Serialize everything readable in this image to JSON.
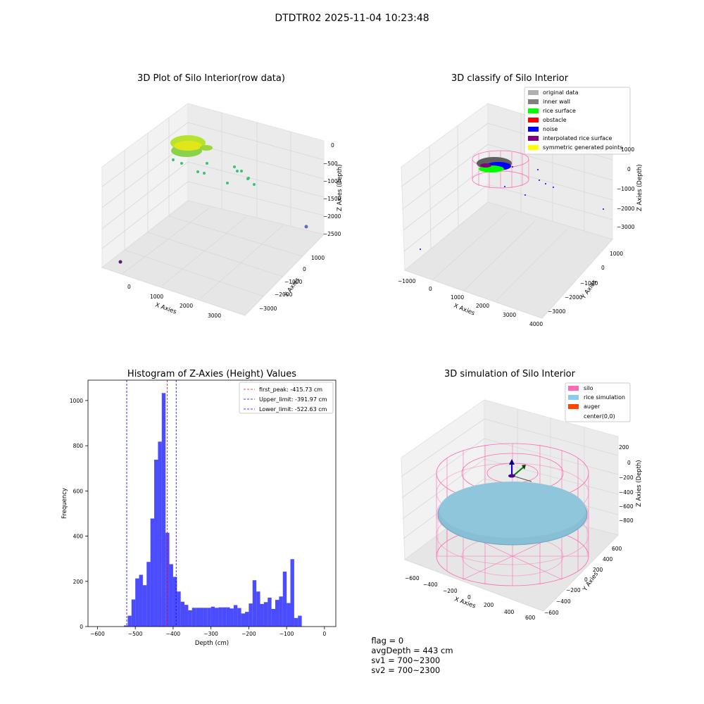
{
  "window": {
    "title": "DTDTR02 2025-11-04 10:23:48"
  },
  "panels": {
    "raw": {
      "title": "3D Plot of Silo Interior(row data)",
      "xlabel": "X Axies",
      "ylabel": "Y Axies",
      "zlabel": "Z Axies (Depth)",
      "xticks": [
        "0",
        "1000",
        "2000",
        "3000"
      ],
      "yticks": [
        "1000",
        "0",
        "−1000",
        "−2000",
        "−3000"
      ],
      "zticks": [
        "0",
        "−500",
        "−1000",
        "−1500",
        "−2000",
        "−2500"
      ]
    },
    "classify": {
      "title": "3D classify of Silo Interior",
      "xlabel": "X Axies",
      "ylabel": "Y Axies",
      "zlabel": "Z Axies (Depth)",
      "xticks": [
        "−1000",
        "0",
        "1000",
        "2000",
        "3000",
        "4000"
      ],
      "yticks": [
        "1000",
        "0",
        "−1000",
        "−2000",
        "−3000"
      ],
      "zticks": [
        "1000",
        "0",
        "−1000",
        "−2000",
        "−3000"
      ],
      "legend": [
        {
          "label": "original data",
          "color": "#b0b0b0"
        },
        {
          "label": "inner wall",
          "color": "#808080"
        },
        {
          "label": "rice surface",
          "color": "#00ff00"
        },
        {
          "label": "obstacle",
          "color": "#ff0000"
        },
        {
          "label": "noise",
          "color": "#0000ff"
        },
        {
          "label": "interpolated rice surface",
          "color": "#800080"
        },
        {
          "label": "symmetric generated points",
          "color": "#ffff00"
        }
      ]
    },
    "simulation": {
      "title": "3D simulation of Silo Interior",
      "xlabel": "X Axies",
      "ylabel": "Y Axies",
      "zlabel": "Z Axies (Depth)",
      "xticks": [
        "−600",
        "−400",
        "−200",
        "0",
        "200",
        "400",
        "600"
      ],
      "yticks": [
        "600",
        "400",
        "200",
        "0",
        "−200",
        "−400",
        "−600"
      ],
      "zticks": [
        "200",
        "0",
        "−200",
        "−400",
        "−600",
        "−800"
      ],
      "legend": [
        {
          "label": "silo",
          "color": "#ff69b4"
        },
        {
          "label": "rice simulation",
          "color": "#87ceeb"
        },
        {
          "label": "auger",
          "color": "#ff4500"
        },
        {
          "label": "center(0,0)",
          "color": ""
        }
      ]
    }
  },
  "status": {
    "flag": "flag = 0",
    "avg_depth": "avgDepth = 443 cm",
    "sv1": "sv1 = 700~2300",
    "sv2": "sv2 = 700~2300"
  },
  "chart_data": [
    {
      "type": "histogram",
      "title": "Histogram of Z-Axies (Height) Values",
      "xlabel": "Depth (cm)",
      "ylabel": "Frequency",
      "xlim": [
        -625,
        30
      ],
      "ylim": [
        0,
        1090
      ],
      "xticks": [
        -600,
        -500,
        -400,
        -300,
        -200,
        -100,
        0
      ],
      "yticks": [
        0,
        200,
        400,
        600,
        800,
        1000
      ],
      "bar_color": "#0000ff",
      "bins": [
        [
          -530,
          -520,
          5
        ],
        [
          -520,
          -510,
          48
        ],
        [
          -510,
          -500,
          120
        ],
        [
          -500,
          -490,
          213
        ],
        [
          -490,
          -480,
          229
        ],
        [
          -480,
          -470,
          183
        ],
        [
          -470,
          -460,
          286
        ],
        [
          -460,
          -450,
          478
        ],
        [
          -450,
          -440,
          738
        ],
        [
          -440,
          -430,
          818
        ],
        [
          -430,
          -420,
          1033
        ],
        [
          -420,
          -410,
          415
        ],
        [
          -410,
          -400,
          276
        ],
        [
          -400,
          -390,
          220
        ],
        [
          -390,
          -380,
          155
        ],
        [
          -380,
          -370,
          110
        ],
        [
          -370,
          -360,
          96
        ],
        [
          -360,
          -350,
          72
        ],
        [
          -350,
          -340,
          83
        ],
        [
          -340,
          -330,
          83
        ],
        [
          -330,
          -320,
          83
        ],
        [
          -320,
          -310,
          83
        ],
        [
          -310,
          -300,
          83
        ],
        [
          -300,
          -290,
          88
        ],
        [
          -290,
          -280,
          83
        ],
        [
          -280,
          -270,
          85
        ],
        [
          -270,
          -260,
          85
        ],
        [
          -260,
          -250,
          85
        ],
        [
          -250,
          -240,
          80
        ],
        [
          -240,
          -230,
          95
        ],
        [
          -230,
          -220,
          82
        ],
        [
          -220,
          -210,
          58
        ],
        [
          -210,
          -200,
          65
        ],
        [
          -200,
          -190,
          102
        ],
        [
          -190,
          -180,
          205
        ],
        [
          -180,
          -170,
          155
        ],
        [
          -170,
          -160,
          100
        ],
        [
          -160,
          -150,
          108
        ],
        [
          -150,
          -140,
          128
        ],
        [
          -140,
          -130,
          78
        ],
        [
          -130,
          -120,
          118
        ],
        [
          -120,
          -110,
          133
        ],
        [
          -110,
          -100,
          243
        ],
        [
          -100,
          -90,
          104
        ],
        [
          -90,
          -80,
          298
        ],
        [
          -80,
          -70,
          38
        ],
        [
          -70,
          -60,
          48
        ]
      ],
      "lines": [
        {
          "label": "first_peak: -415.73 cm",
          "x": -415.73,
          "color": "#ff0000"
        },
        {
          "label": "Upper_limit: -391.97 cm",
          "x": -391.97,
          "color": "#0000ff"
        },
        {
          "label": "Lower_limit: -522.63 cm",
          "x": -522.63,
          "color": "#0000ff"
        }
      ]
    }
  ]
}
